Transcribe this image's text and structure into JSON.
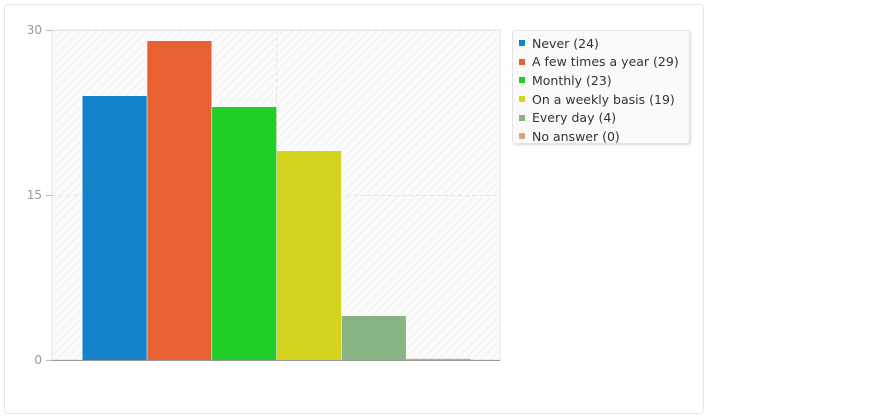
{
  "chart_data": {
    "type": "bar",
    "categories": [
      "Never",
      "A few times a year",
      "Monthly",
      "On a weekly basis",
      "Every day",
      "No answer"
    ],
    "values": [
      24,
      29,
      23,
      19,
      4,
      0
    ],
    "colors": [
      "#1482c8",
      "#e96133",
      "#1fcf28",
      "#d4d41e",
      "#88b383",
      "#d9a67a"
    ],
    "legend_labels": [
      "Never (24)",
      "A few times a year (29)",
      "Monthly (23)",
      "On a weekly basis (19)",
      "Every day (4)",
      "No answer (0)"
    ],
    "yticks": [
      "0",
      "15",
      "30"
    ],
    "ylim": [
      0,
      30
    ],
    "title": "",
    "xlabel": "",
    "ylabel": "",
    "legend_position": "right",
    "grid": true
  }
}
